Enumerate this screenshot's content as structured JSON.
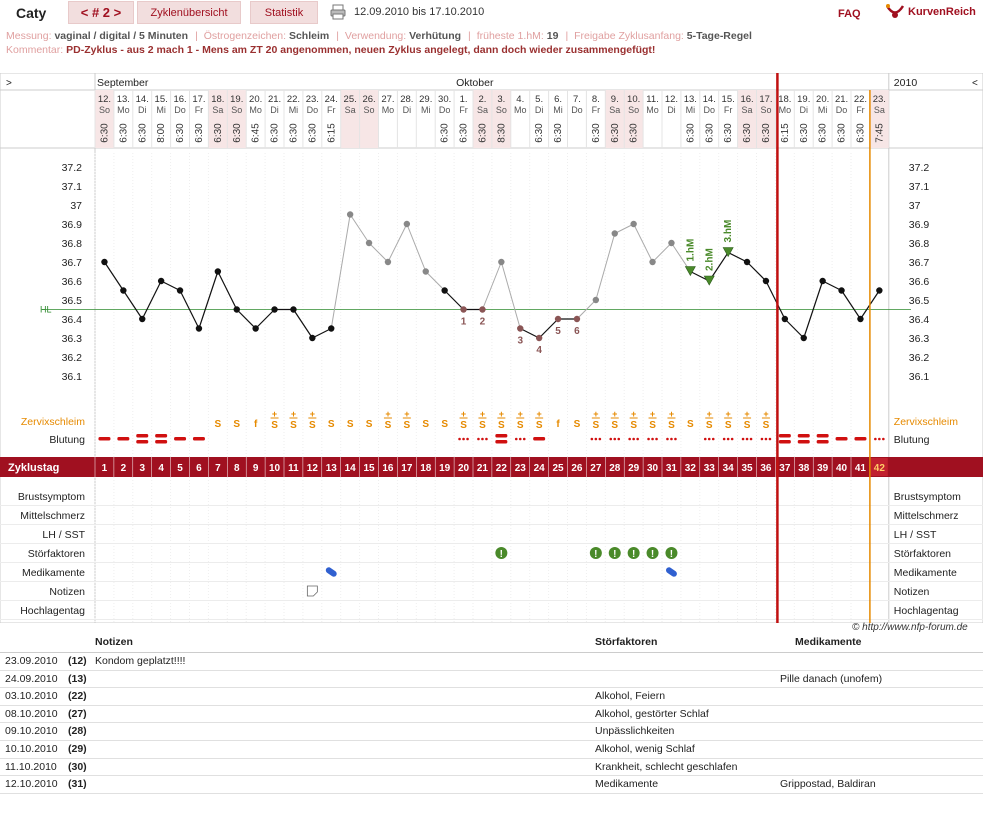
{
  "header": {
    "user": "Caty",
    "cycle_nav": "< # 2 >",
    "tabs": [
      "Zyklenübersicht",
      "Statistik"
    ],
    "date_range": "12.09.2010 bis 17.10.2010",
    "faq": "FAQ",
    "brand": "KurvenReich"
  },
  "meta": {
    "line1": [
      {
        "k": "Messung:",
        "v": "vaginal / digital / 5 Minuten"
      },
      {
        "k": "Östrogenzeichen:",
        "v": "Schleim"
      },
      {
        "k": "Verwendung:",
        "v": "Verhütung"
      },
      {
        "k": "früheste 1.hM:",
        "v": "19"
      },
      {
        "k": "Freigabe Zyklusanfang:",
        "v": "5-Tage-Regel"
      }
    ],
    "comment_label": "Kommentar:",
    "comment": "PD-Zyklus - aus 2 mach 1 - Mens am ZT 20 angenommen, neuen Zyklus angelegt, dann doch wieder zusammengefügt!"
  },
  "colors": {
    "accent": "#a01020",
    "coverline": "#2e8b2e",
    "weekend": "#f7e6e6",
    "cycle_bar": "#a01020",
    "orange": "#e68a00",
    "thermal_green": "#4a8a2a",
    "temp_grey": "#888888"
  },
  "chart_data": {
    "type": "line",
    "year": "2010",
    "months": [
      {
        "label": "September",
        "col": 0
      },
      {
        "label": "Oktober",
        "col": 19
      }
    ],
    "nav_left": ">",
    "nav_right": "<",
    "days": [
      {
        "d": "12.",
        "w": "So",
        "t": "6:30",
        "we": true
      },
      {
        "d": "13.",
        "w": "Mo",
        "t": "6:30",
        "we": false
      },
      {
        "d": "14.",
        "w": "Di",
        "t": "6:30",
        "we": false
      },
      {
        "d": "15.",
        "w": "Mi",
        "t": "8:00",
        "we": false
      },
      {
        "d": "16.",
        "w": "Do",
        "t": "6:30",
        "we": false
      },
      {
        "d": "17.",
        "w": "Fr",
        "t": "6:30",
        "we": false
      },
      {
        "d": "18.",
        "w": "Sa",
        "t": "6:30",
        "we": true
      },
      {
        "d": "19.",
        "w": "So",
        "t": "6:30",
        "we": true
      },
      {
        "d": "20.",
        "w": "Mo",
        "t": "6:45",
        "we": false
      },
      {
        "d": "21.",
        "w": "Di",
        "t": "6:30",
        "we": false
      },
      {
        "d": "22.",
        "w": "Mi",
        "t": "6:30",
        "we": false
      },
      {
        "d": "23.",
        "w": "Do",
        "t": "6:30",
        "we": false
      },
      {
        "d": "24.",
        "w": "Fr",
        "t": "6:15",
        "we": false
      },
      {
        "d": "25.",
        "w": "Sa",
        "t": "",
        "we": true
      },
      {
        "d": "26.",
        "w": "So",
        "t": "",
        "we": true
      },
      {
        "d": "27.",
        "w": "Mo",
        "t": "",
        "we": false
      },
      {
        "d": "28.",
        "w": "Di",
        "t": "",
        "we": false
      },
      {
        "d": "29.",
        "w": "Mi",
        "t": "",
        "we": false
      },
      {
        "d": "30.",
        "w": "Do",
        "t": "6:30",
        "we": false
      },
      {
        "d": "1.",
        "w": "Fr",
        "t": "6:30",
        "we": false
      },
      {
        "d": "2.",
        "w": "Sa",
        "t": "6:30",
        "we": true
      },
      {
        "d": "3.",
        "w": "So",
        "t": "8:30",
        "we": true
      },
      {
        "d": "4.",
        "w": "Mo",
        "t": "",
        "we": false
      },
      {
        "d": "5.",
        "w": "Di",
        "t": "6:30",
        "we": false
      },
      {
        "d": "6.",
        "w": "Mi",
        "t": "6:30",
        "we": false
      },
      {
        "d": "7.",
        "w": "Do",
        "t": "",
        "we": false
      },
      {
        "d": "8.",
        "w": "Fr",
        "t": "6:30",
        "we": false
      },
      {
        "d": "9.",
        "w": "Sa",
        "t": "6:30",
        "we": true
      },
      {
        "d": "10.",
        "w": "So",
        "t": "6:30",
        "we": true
      },
      {
        "d": "11.",
        "w": "Mo",
        "t": "",
        "we": false
      },
      {
        "d": "12.",
        "w": "Di",
        "t": "",
        "we": false
      },
      {
        "d": "13.",
        "w": "Mi",
        "t": "6:30",
        "we": false
      },
      {
        "d": "14.",
        "w": "Do",
        "t": "6:30",
        "we": false
      },
      {
        "d": "15.",
        "w": "Fr",
        "t": "6:30",
        "we": false
      },
      {
        "d": "16.",
        "w": "Sa",
        "t": "6:30",
        "we": true
      },
      {
        "d": "17.",
        "w": "So",
        "t": "6:30",
        "we": true
      },
      {
        "d": "18.",
        "w": "Mo",
        "t": "6:15",
        "we": false
      },
      {
        "d": "19.",
        "w": "Di",
        "t": "6:30",
        "we": false
      },
      {
        "d": "20.",
        "w": "Mi",
        "t": "6:30",
        "we": false
      },
      {
        "d": "21.",
        "w": "Do",
        "t": "6:30",
        "we": false
      },
      {
        "d": "22.",
        "w": "Fr",
        "t": "6:30",
        "we": false
      },
      {
        "d": "23.",
        "w": "Sa",
        "t": "7:45",
        "we": true
      }
    ],
    "y_ticks": [
      "37.2",
      "37.1",
      "37",
      "36.9",
      "36.8",
      "36.7",
      "36.6",
      "36.5",
      "36.4",
      "36.3",
      "36.2",
      "36.1"
    ],
    "ylim": [
      36.1,
      37.2
    ],
    "coverline": 36.45,
    "coverline_label": "HL",
    "temps": [
      36.7,
      36.55,
      36.4,
      36.6,
      36.55,
      36.35,
      36.65,
      36.45,
      36.35,
      36.45,
      36.45,
      36.3,
      36.35,
      36.95,
      36.8,
      36.7,
      36.9,
      36.65,
      36.55,
      36.45,
      36.45,
      36.7,
      36.35,
      36.3,
      36.4,
      36.4,
      36.5,
      36.85,
      36.9,
      36.7,
      36.8,
      36.65,
      36.6,
      36.75,
      36.7,
      36.6,
      36.4,
      36.3,
      36.6,
      36.55,
      36.4,
      36.55
    ],
    "grey_days": [
      14,
      15,
      16,
      17,
      18,
      22,
      27,
      28,
      29,
      30,
      31
    ],
    "lower_labels": [
      {
        "day": 20,
        "label": "1"
      },
      {
        "day": 21,
        "label": "2"
      },
      {
        "day": 23,
        "label": "3"
      },
      {
        "day": 24,
        "label": "4"
      },
      {
        "day": 25,
        "label": "5"
      },
      {
        "day": 26,
        "label": "6"
      }
    ],
    "higher_labels": [
      {
        "day": 32,
        "label": "1.hM"
      },
      {
        "day": 33,
        "label": "2.hM"
      },
      {
        "day": 34,
        "label": "3.hM"
      }
    ],
    "cervix_label": "Zervixschleim",
    "cervix": [
      "",
      "",
      "",
      "",
      "",
      "",
      "S",
      "S",
      "f",
      "S+",
      "S+",
      "S+",
      "S",
      "S",
      "S",
      "S+",
      "S+",
      "S",
      "S",
      "S+",
      "S+",
      "S+",
      "S+",
      "S+",
      "f",
      "S",
      "S+",
      "S+",
      "S+",
      "S+",
      "S+",
      "S",
      "S+",
      "S+",
      "S+",
      "S+",
      "",
      "",
      "",
      "",
      "",
      ""
    ],
    "bleeding_label": "Blutung",
    "bleeding": [
      "1",
      "1",
      "2",
      "2",
      "1",
      "1",
      "",
      "",
      "",
      "",
      "",
      "",
      "",
      "",
      "",
      "",
      "",
      "",
      "",
      "d",
      "d",
      "2",
      "d",
      "1",
      "",
      "",
      "d",
      "d",
      "d",
      "d",
      "d",
      "",
      "d",
      "d",
      "d",
      "d",
      "2",
      "2",
      "2",
      "1",
      "1",
      "d"
    ],
    "cycle_label": "Zyklustag",
    "cycle_days": [
      "1",
      "2",
      "3",
      "4",
      "5",
      "6",
      "7",
      "8",
      "9",
      "10",
      "11",
      "12",
      "13",
      "14",
      "15",
      "16",
      "17",
      "18",
      "19",
      "20",
      "21",
      "22",
      "23",
      "24",
      "25",
      "26",
      "27",
      "28",
      "29",
      "30",
      "31",
      "32",
      "33",
      "34",
      "35",
      "36",
      "37",
      "38",
      "39",
      "40",
      "41",
      "42"
    ],
    "symptom_rows": [
      "Brustsymptom",
      "Mittelschmerz",
      "LH / SST",
      "Störfaktoren",
      "Medikamente",
      "Notizen",
      "Hochlagentag"
    ],
    "disturbance_days": [
      22,
      27,
      28,
      29,
      30,
      31
    ],
    "medication_days": [
      13,
      31
    ],
    "note_days": [
      12
    ],
    "marker_red_after_day": 36,
    "marker_orange_after_day": 41,
    "copyright": "© http://www.nfp-forum.de"
  },
  "notes_table": {
    "headers": [
      "Notizen",
      "Störfaktoren",
      "Medikamente"
    ],
    "rows": [
      {
        "date": "23.09.2010",
        "day": "(12)",
        "note": "Kondom geplatzt!!!!",
        "dist": "",
        "med": ""
      },
      {
        "date": "24.09.2010",
        "day": "(13)",
        "note": "",
        "dist": "",
        "med": "Pille danach (unofem)"
      },
      {
        "date": "03.10.2010",
        "day": "(22)",
        "note": "",
        "dist": "Alkohol, Feiern",
        "med": ""
      },
      {
        "date": "08.10.2010",
        "day": "(27)",
        "note": "",
        "dist": "Alkohol, gestörter Schlaf",
        "med": ""
      },
      {
        "date": "09.10.2010",
        "day": "(28)",
        "note": "",
        "dist": "Unpässlichkeiten",
        "med": ""
      },
      {
        "date": "10.10.2010",
        "day": "(29)",
        "note": "",
        "dist": "Alkohol, wenig Schlaf",
        "med": ""
      },
      {
        "date": "11.10.2010",
        "day": "(30)",
        "note": "",
        "dist": "Krankheit, schlecht geschlafen",
        "med": ""
      },
      {
        "date": "12.10.2010",
        "day": "(31)",
        "note": "",
        "dist": "Medikamente",
        "med": "Grippostad, Baldiran"
      }
    ]
  }
}
